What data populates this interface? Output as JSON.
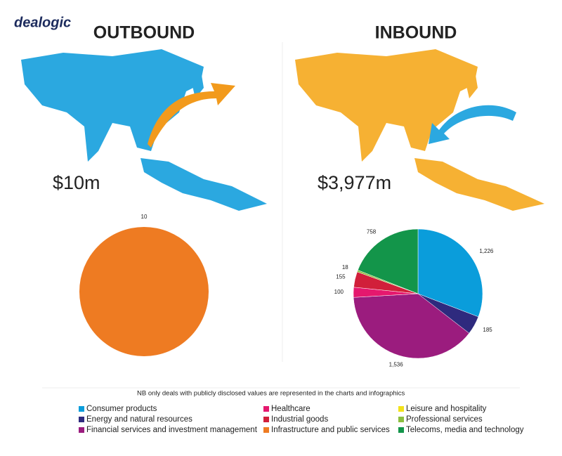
{
  "brand": "dealogic",
  "chart_data": [
    {
      "type": "pie",
      "title": "OUTBOUND",
      "total": "$10m",
      "values": [
        10
      ],
      "colors": [
        "#ee7b22"
      ]
    },
    {
      "type": "pie",
      "title": "INBOUND",
      "total": "$3,977m",
      "values": [
        1226,
        185,
        1536,
        100,
        155,
        18,
        758
      ],
      "value_labels": [
        "1,226",
        "185",
        "1,536",
        "100",
        "155",
        "18",
        "758"
      ],
      "colors": [
        "#0a9ddb",
        "#2e2a7e",
        "#9b1c7e",
        "#e5186e",
        "#d11f3a",
        "#8cbf3f",
        "#13954a"
      ]
    }
  ],
  "note": "NB only deals with publicly disclosed values are represented in the charts and infographics",
  "legend": [
    {
      "name": "Consumer products",
      "color": "#0a9ddb"
    },
    {
      "name": "Energy and natural resources",
      "color": "#2e2a7e"
    },
    {
      "name": "Financial services and investment management",
      "color": "#9b1c7e"
    },
    {
      "name": "Healthcare",
      "color": "#e5186e"
    },
    {
      "name": "Industrial goods",
      "color": "#d11f3a"
    },
    {
      "name": "Infrastructure and public services",
      "color": "#ee7b22"
    },
    {
      "name": "Leisure and hospitality",
      "color": "#f2e21b"
    },
    {
      "name": "Professional services",
      "color": "#8cbf3f"
    },
    {
      "name": "Telecoms, media and technology",
      "color": "#13954a"
    }
  ]
}
